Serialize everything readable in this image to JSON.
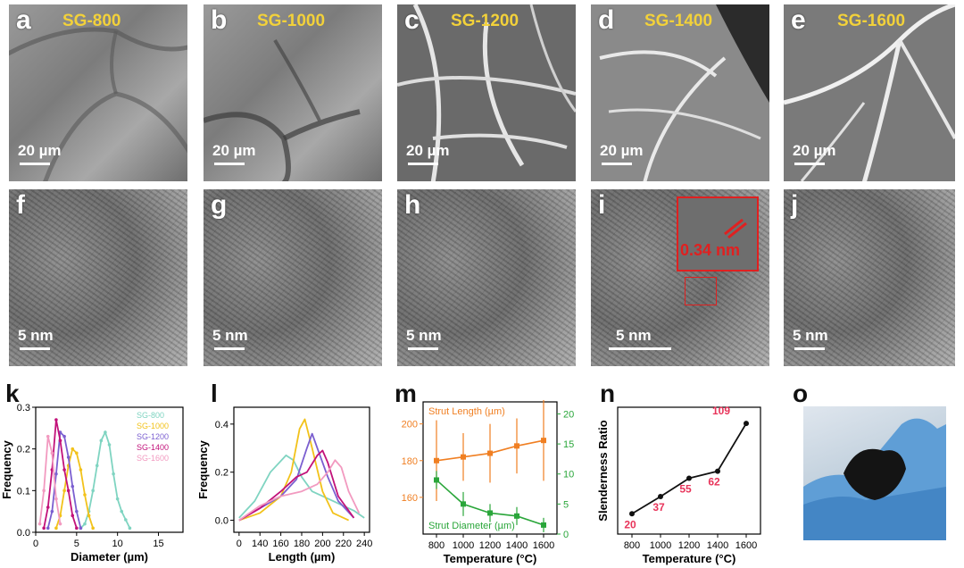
{
  "sem_panels": [
    {
      "letter": "a",
      "sample": "SG-800",
      "scale": "20 µm"
    },
    {
      "letter": "b",
      "sample": "SG-1000",
      "scale": "20 µm"
    },
    {
      "letter": "c",
      "sample": "SG-1200",
      "scale": "20 µm"
    },
    {
      "letter": "d",
      "sample": "SG-1400",
      "scale": "20 µm"
    },
    {
      "letter": "e",
      "sample": "SG-1600",
      "scale": "20 µm"
    }
  ],
  "tem_panels": [
    {
      "letter": "f",
      "scale": "5 nm"
    },
    {
      "letter": "g",
      "scale": "5 nm"
    },
    {
      "letter": "h",
      "scale": "5 nm"
    },
    {
      "letter": "i",
      "scale": "5 nm",
      "inset": "0.34 nm"
    },
    {
      "letter": "j",
      "scale": "5 nm"
    }
  ],
  "plot_letters": {
    "k": "k",
    "l": "l",
    "m": "m",
    "n": "n",
    "o": "o"
  },
  "colors": {
    "sg800": "#7fd4c1",
    "sg1000": "#f2c21a",
    "sg1200": "#7b5fd0",
    "sg1400": "#c2127a",
    "sg1600": "#f29ac0",
    "orange": "#f07f22",
    "green": "#2aa63a",
    "inset_red": "#e02020",
    "label_red": "#e8345a"
  },
  "chart_data": [
    {
      "type": "line",
      "panel": "k",
      "xlabel": "Diameter (µm)",
      "ylabel": "Frequency",
      "xlim": [
        0,
        18
      ],
      "ylim": [
        0,
        0.3
      ],
      "xticks": [
        "0",
        "5",
        "10",
        "15"
      ],
      "yticks": [
        "0.0",
        "0.1",
        "0.2",
        "0.3"
      ],
      "legend": "top-right",
      "series": [
        {
          "name": "SG-800",
          "x": [
            5.5,
            6,
            6.5,
            7,
            7.5,
            8,
            8.5,
            9,
            9.5,
            10,
            10.5,
            11,
            11.5
          ],
          "y": [
            0.01,
            0.02,
            0.05,
            0.1,
            0.16,
            0.22,
            0.24,
            0.21,
            0.14,
            0.08,
            0.05,
            0.03,
            0.01
          ]
        },
        {
          "name": "SG-1000",
          "x": [
            2.5,
            3,
            3.5,
            4,
            4.5,
            5,
            5.5,
            6,
            6.5,
            7
          ],
          "y": [
            0.01,
            0.04,
            0.1,
            0.16,
            0.2,
            0.19,
            0.15,
            0.09,
            0.04,
            0.01
          ]
        },
        {
          "name": "SG-1200",
          "x": [
            1.5,
            2,
            2.5,
            3,
            3.5,
            4,
            4.5,
            5,
            5.5
          ],
          "y": [
            0.01,
            0.05,
            0.14,
            0.24,
            0.23,
            0.18,
            0.11,
            0.05,
            0.01
          ]
        },
        {
          "name": "SG-1400",
          "x": [
            1,
            1.5,
            2,
            2.5,
            3,
            3.5,
            4,
            4.5,
            5
          ],
          "y": [
            0.01,
            0.06,
            0.15,
            0.27,
            0.22,
            0.15,
            0.1,
            0.04,
            0.01
          ]
        },
        {
          "name": "SG-1600",
          "x": [
            0.5,
            1,
            1.5,
            2,
            2.5,
            3
          ],
          "y": [
            0.02,
            0.1,
            0.23,
            0.19,
            0.08,
            0.02
          ]
        }
      ]
    },
    {
      "type": "line",
      "panel": "l",
      "xlabel": "Length (µm)",
      "ylabel": "Frequency",
      "xlim": [
        115,
        245
      ],
      "ylim": [
        -0.05,
        0.47
      ],
      "xticks": [
        "0",
        "140",
        "160",
        "180",
        "200",
        "220",
        "240"
      ],
      "yticks": [
        "0.0",
        "0.2",
        "0.4"
      ],
      "series": [
        {
          "name": "SG-800",
          "x": [
            120,
            135,
            150,
            165,
            172,
            180,
            190,
            200,
            215,
            230,
            240
          ],
          "y": [
            0.01,
            0.08,
            0.2,
            0.27,
            0.25,
            0.18,
            0.12,
            0.1,
            0.07,
            0.04,
            0.01
          ]
        },
        {
          "name": "SG-1000",
          "x": [
            120,
            140,
            160,
            170,
            178,
            183,
            190,
            200,
            210,
            225
          ],
          "y": [
            0.0,
            0.03,
            0.1,
            0.2,
            0.38,
            0.42,
            0.3,
            0.12,
            0.03,
            0.0
          ]
        },
        {
          "name": "SG-1200",
          "x": [
            120,
            140,
            160,
            175,
            185,
            190,
            195,
            205,
            215,
            230
          ],
          "y": [
            0.0,
            0.05,
            0.1,
            0.17,
            0.3,
            0.36,
            0.3,
            0.18,
            0.08,
            0.01
          ]
        },
        {
          "name": "SG-1400",
          "x": [
            120,
            140,
            160,
            175,
            185,
            195,
            200,
            205,
            215,
            230
          ],
          "y": [
            0.0,
            0.05,
            0.12,
            0.18,
            0.2,
            0.27,
            0.29,
            0.24,
            0.1,
            0.01
          ]
        },
        {
          "name": "SG-1600",
          "x": [
            120,
            140,
            160,
            180,
            195,
            205,
            212,
            218,
            225,
            235
          ],
          "y": [
            0.0,
            0.06,
            0.1,
            0.12,
            0.15,
            0.2,
            0.25,
            0.22,
            0.12,
            0.03
          ]
        }
      ]
    },
    {
      "type": "line",
      "panel": "m",
      "xlabel": "Temperature (°C)",
      "y1label": "Strut Length (µm)",
      "y2label": "Strut Diameter (µm)",
      "xlim": [
        700,
        1700
      ],
      "y1lim": [
        140,
        212
      ],
      "y2lim": [
        0,
        22
      ],
      "xticks": [
        "800",
        "1000",
        "1200",
        "1400",
        "1600"
      ],
      "y1ticks": [
        "160",
        "180",
        "200"
      ],
      "y2ticks": [
        "0",
        "5",
        "10",
        "15",
        "20"
      ],
      "series": [
        {
          "name": "Strut Length (µm)",
          "axis": "left",
          "x": [
            800,
            1000,
            1200,
            1400,
            1600
          ],
          "y": [
            180,
            182,
            184,
            188,
            191
          ],
          "err": [
            22,
            13,
            16,
            15,
            22
          ]
        },
        {
          "name": "Strut Diameter (µm)",
          "axis": "right",
          "x": [
            800,
            1000,
            1200,
            1400,
            1600
          ],
          "y": [
            9,
            5,
            3.5,
            3,
            1.5
          ],
          "err": [
            1.5,
            2,
            1.5,
            1.5,
            1.2
          ]
        }
      ]
    },
    {
      "type": "line",
      "panel": "n",
      "xlabel": "Temperature (°C)",
      "ylabel": "Slenderness Ratio",
      "xlim": [
        700,
        1700
      ],
      "ylim": [
        0,
        125
      ],
      "xticks": [
        "800",
        "1000",
        "1200",
        "1400",
        "1600"
      ],
      "series": [
        {
          "x": [
            800,
            1000,
            1200,
            1400,
            1600
          ],
          "y": [
            20,
            37,
            55,
            62,
            109
          ],
          "labels": [
            "20",
            "37",
            "55",
            "62",
            "109"
          ]
        }
      ]
    }
  ]
}
